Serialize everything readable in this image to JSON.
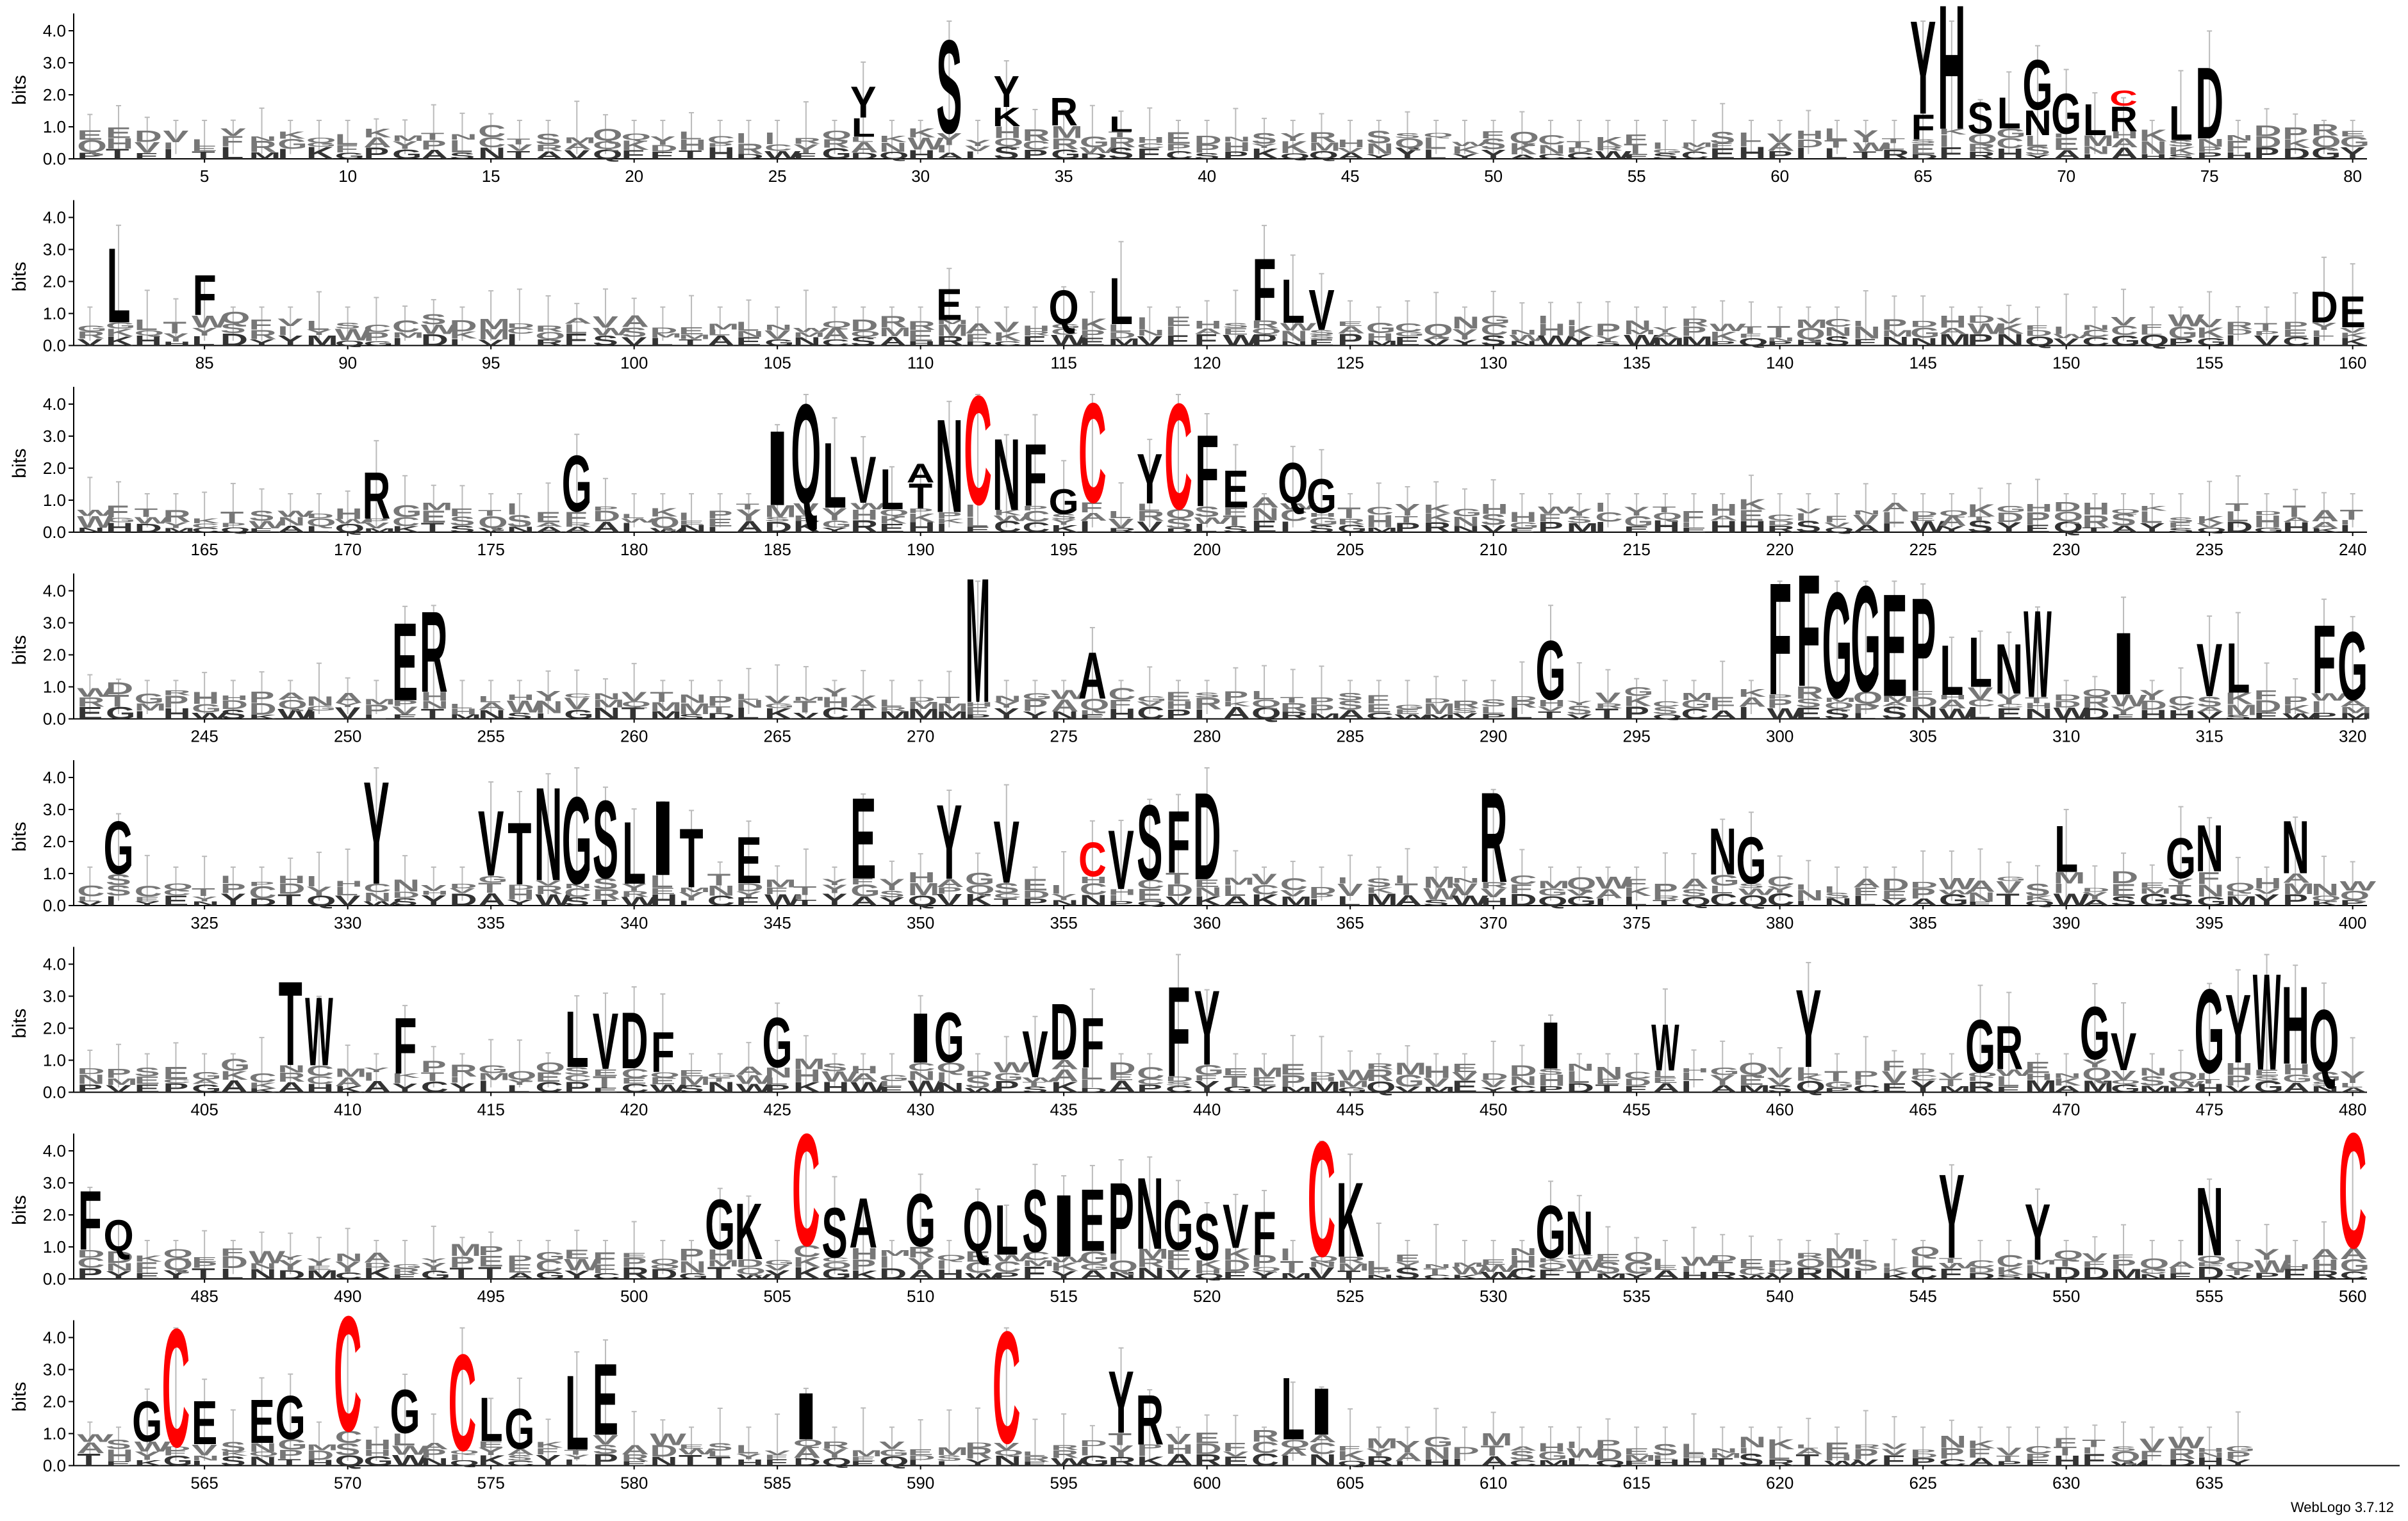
{
  "chart_data": {
    "type": "sequence-logo",
    "ylabel": "bits",
    "ylim": [
      0,
      4.3
    ],
    "y_ticks": [
      "0.0",
      "1.0",
      "2.0",
      "3.0",
      "4.0"
    ],
    "positions_per_row": 80,
    "total_positions": 636,
    "x_tick_every": 5,
    "colors": {
      "default": "#000000",
      "cysteine": "#ff0000",
      "errorbar": "#bbbbbb",
      "minor": "#777777"
    },
    "stacks": {
      "28": [
        [
          "L",
          0.6
        ],
        [
          "Y",
          1.0
        ]
      ],
      "31": [
        [
          "S",
          3.0
        ]
      ],
      "33": [
        [
          "K",
          0.6
        ],
        [
          "Y",
          1.0
        ]
      ],
      "35": [
        [
          "R",
          0.9
        ]
      ],
      "37": [
        [
          "L",
          0.5
        ]
      ],
      "65": [
        [
          "F",
          0.8
        ],
        [
          "Y",
          3.0
        ]
      ],
      "66": [
        [
          "H",
          4.0
        ]
      ],
      "67": [
        [
          "S",
          1.0
        ]
      ],
      "68": [
        [
          "L",
          1.0
        ]
      ],
      "69": [
        [
          "N",
          0.8
        ],
        [
          "G",
          1.6
        ]
      ],
      "70": [
        [
          "G",
          1.3
        ]
      ],
      "71": [
        [
          "L",
          1.0
        ]
      ],
      "72": [
        [
          "R",
          0.8
        ],
        [
          "C",
          0.5
        ]
      ],
      "74": [
        [
          "L",
          1.1
        ]
      ],
      "75": [
        [
          "D",
          2.3
        ]
      ],
      "82": [
        [
          "L",
          2.4
        ]
      ],
      "85": [
        [
          "F",
          1.3
        ]
      ],
      "111": [
        [
          "E",
          1.0
        ]
      ],
      "115": [
        [
          "Q",
          1.1
        ]
      ],
      "117": [
        [
          "L",
          1.5
        ]
      ],
      "122": [
        [
          "F",
          2.0
        ]
      ],
      "123": [
        [
          "L",
          1.4
        ]
      ],
      "124": [
        [
          "V",
          1.3
        ]
      ],
      "159": [
        [
          "D",
          1.0
        ]
      ],
      "160": [
        [
          "E",
          1.0
        ]
      ],
      "171": [
        [
          "R",
          1.5
        ]
      ],
      "178": [
        [
          "G",
          1.8
        ]
      ],
      "185": [
        [
          "I",
          2.4
        ]
      ],
      "186": [
        [
          "Q",
          3.2
        ]
      ],
      "187": [
        [
          "L",
          2.1
        ]
      ],
      "188": [
        [
          "V",
          1.5
        ]
      ],
      "189": [
        [
          "L",
          1.3
        ]
      ],
      "190": [
        [
          "T",
          0.8
        ],
        [
          "A",
          0.6
        ]
      ],
      "191": [
        [
          "N",
          3.0
        ]
      ],
      "192": [
        [
          "C",
          3.5
        ]
      ],
      "193": [
        [
          "N",
          2.3
        ]
      ],
      "194": [
        [
          "F",
          2.0
        ]
      ],
      "195": [
        [
          "G",
          0.8
        ]
      ],
      "196": [
        [
          "C",
          3.2
        ]
      ],
      "198": [
        [
          "Y",
          1.6
        ]
      ],
      "199": [
        [
          "C",
          3.4
        ]
      ],
      "200": [
        [
          "F",
          2.3
        ]
      ],
      "201": [
        [
          "E",
          1.2
        ]
      ],
      "203": [
        [
          "Q",
          1.3
        ]
      ],
      "204": [
        [
          "G",
          1.1
        ]
      ],
      "252": [
        [
          "E",
          2.5
        ]
      ],
      "253": [
        [
          "R",
          2.6
        ]
      ],
      "272": [
        [
          "M",
          4.0
        ]
      ],
      "276": [
        [
          "A",
          1.5
        ]
      ],
      "292": [
        [
          "G",
          1.9
        ]
      ],
      "300": [
        [
          "F",
          3.6
        ]
      ],
      "301": [
        [
          "F",
          3.6
        ]
      ],
      "302": [
        [
          "G",
          3.4
        ]
      ],
      "303": [
        [
          "G",
          3.4
        ]
      ],
      "304": [
        [
          "E",
          3.3
        ]
      ],
      "305": [
        [
          "P",
          3.0
        ]
      ],
      "306": [
        [
          "L",
          1.6
        ]
      ],
      "307": [
        [
          "L",
          1.6
        ]
      ],
      "308": [
        [
          "N",
          1.6
        ]
      ],
      "309": [
        [
          "W",
          2.8
        ]
      ],
      "312": [
        [
          "I",
          2.0
        ]
      ],
      "315": [
        [
          "V",
          1.7
        ]
      ],
      "316": [
        [
          "L",
          1.6
        ]
      ],
      "319": [
        [
          "F",
          2.2
        ]
      ],
      "320": [
        [
          "G",
          2.2
        ]
      ],
      "322": [
        [
          "G",
          1.7
        ]
      ],
      "331": [
        [
          "Y",
          3.3
        ]
      ],
      "335": [
        [
          "V",
          2.1
        ]
      ],
      "336": [
        [
          "T",
          2.0
        ]
      ],
      "337": [
        [
          "N",
          3.0
        ]
      ],
      "338": [
        [
          "G",
          2.8
        ]
      ],
      "339": [
        [
          "S",
          2.5
        ]
      ],
      "340": [
        [
          "L",
          2.0
        ]
      ],
      "341": [
        [
          "I",
          2.4
        ]
      ],
      "342": [
        [
          "T",
          1.9
        ]
      ],
      "344": [
        [
          "E",
          1.5
        ]
      ],
      "348": [
        [
          "E",
          2.6
        ]
      ],
      "351": [
        [
          "Y",
          2.4
        ]
      ],
      "353": [
        [
          "V",
          2.0
        ]
      ],
      "356": [
        [
          "C",
          1.1
        ]
      ],
      "357": [
        [
          "V",
          1.9
        ]
      ],
      "358": [
        [
          "S",
          2.4
        ]
      ],
      "359": [
        [
          "F",
          2.0
        ]
      ],
      "360": [
        [
          "D",
          2.8
        ]
      ],
      "370": [
        [
          "R",
          2.9
        ]
      ],
      "378": [
        [
          "N",
          1.5
        ]
      ],
      "379": [
        [
          "G",
          1.5
        ]
      ],
      "390": [
        [
          "L",
          1.5
        ]
      ],
      "394": [
        [
          "G",
          1.3
        ]
      ],
      "395": [
        [
          "N",
          1.5
        ]
      ],
      "398": [
        [
          "N",
          1.7
        ]
      ],
      "408": [
        [
          "T",
          2.7
        ]
      ],
      "409": [
        [
          "W",
          2.2
        ]
      ],
      "412": [
        [
          "F",
          1.8
        ]
      ],
      "418": [
        [
          "L",
          1.8
        ]
      ],
      "419": [
        [
          "V",
          1.8
        ]
      ],
      "420": [
        [
          "D",
          1.8
        ]
      ],
      "421": [
        [
          "F",
          1.3
        ]
      ],
      "425": [
        [
          "G",
          1.6
        ]
      ],
      "430": [
        [
          "I",
          1.6
        ]
      ],
      "431": [
        [
          "G",
          1.6
        ]
      ],
      "434": [
        [
          "V",
          1.5
        ]
      ],
      "435": [
        [
          "D",
          1.8
        ]
      ],
      "436": [
        [
          "F",
          1.6
        ]
      ],
      "439": [
        [
          "F",
          2.9
        ]
      ],
      "440": [
        [
          "Y",
          2.4
        ]
      ],
      "452": [
        [
          "I",
          1.5
        ]
      ],
      "456": [
        [
          "W",
          1.5
        ]
      ],
      "461": [
        [
          "Y",
          2.5
        ]
      ],
      "467": [
        [
          "G",
          1.7
        ]
      ],
      "468": [
        [
          "R",
          1.4
        ]
      ],
      "471": [
        [
          "G",
          1.7
        ]
      ],
      "472": [
        [
          "V",
          1.2
        ]
      ],
      "475": [
        [
          "G",
          2.7
        ]
      ],
      "476": [
        [
          "Y",
          2.2
        ]
      ],
      "477": [
        [
          "W",
          3.1
        ]
      ],
      "478": [
        [
          "H",
          2.5
        ]
      ],
      "479": [
        [
          "Q",
          2.0
        ]
      ],
      "481": [
        [
          "F",
          1.9
        ]
      ],
      "482": [
        [
          "Q",
          1.0
        ]
      ],
      "503": [
        [
          "G",
          1.6
        ]
      ],
      "504": [
        [
          "K",
          1.8
        ]
      ],
      "506": [
        [
          "C",
          3.6
        ]
      ],
      "507": [
        [
          "S",
          1.6
        ]
      ],
      "508": [
        [
          "A",
          1.6
        ]
      ],
      "510": [
        [
          "G",
          1.7
        ]
      ],
      "512": [
        [
          "Q",
          1.6
        ]
      ],
      "513": [
        [
          "L",
          1.6
        ]
      ],
      "514": [
        [
          "S",
          2.0
        ]
      ],
      "515": [
        [
          "I",
          2.0
        ]
      ],
      "516": [
        [
          "E",
          2.0
        ]
      ],
      "517": [
        [
          "P",
          2.3
        ]
      ],
      "518": [
        [
          "N",
          2.3
        ]
      ],
      "519": [
        [
          "G",
          1.6
        ]
      ],
      "520": [
        [
          "S",
          1.5
        ]
      ],
      "521": [
        [
          "V",
          1.4
        ]
      ],
      "522": [
        [
          "F",
          1.4
        ]
      ],
      "524": [
        [
          "C",
          3.7
        ]
      ],
      "525": [
        [
          "K",
          2.4
        ]
      ],
      "532": [
        [
          "G",
          1.7
        ]
      ],
      "533": [
        [
          "N",
          1.4
        ]
      ],
      "546": [
        [
          "Y",
          2.7
        ]
      ],
      "549": [
        [
          "Y",
          1.8
        ]
      ],
      "555": [
        [
          "N",
          2.2
        ]
      ],
      "560": [
        [
          "C",
          3.7
        ]
      ],
      "563": [
        [
          "G",
          1.3
        ]
      ],
      "564": [
        [
          "C",
          3.8
        ]
      ],
      "565": [
        [
          "E",
          1.4
        ]
      ],
      "567": [
        [
          "E",
          1.4
        ]
      ],
      "568": [
        [
          "G",
          1.4
        ]
      ],
      "570": [
        [
          "C",
          3.7
        ]
      ],
      "572": [
        [
          "G",
          1.4
        ]
      ],
      "574": [
        [
          "C",
          3.1
        ]
      ],
      "575": [
        [
          "L",
          1.4
        ]
      ],
      "576": [
        [
          "G",
          1.3
        ]
      ],
      "578": [
        [
          "L",
          2.4
        ]
      ],
      "579": [
        [
          "E",
          2.3
        ]
      ],
      "586": [
        [
          "I",
          1.5
        ]
      ],
      "593": [
        [
          "C",
          3.6
        ]
      ],
      "597": [
        [
          "Y",
          2.0
        ]
      ],
      "598": [
        [
          "R",
          1.6
        ]
      ],
      "603": [
        [
          "L",
          2.0
        ]
      ],
      "604": [
        [
          "I",
          1.5
        ]
      ]
    }
  },
  "footer": {
    "credit": "WebLogo 3.7.12"
  }
}
